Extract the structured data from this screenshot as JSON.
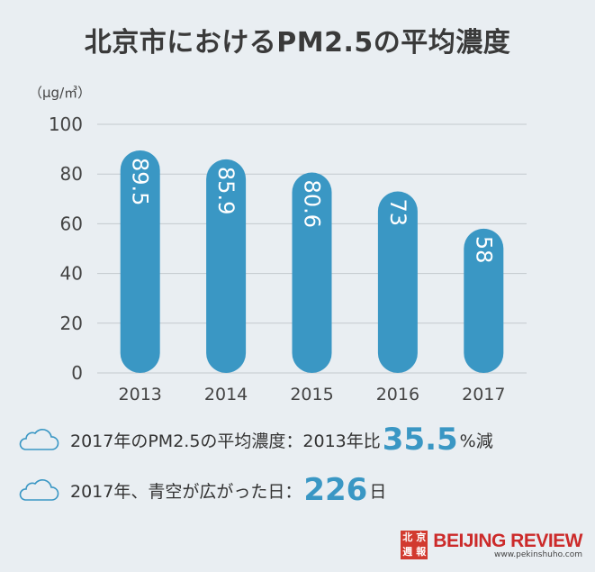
{
  "title": "北京市におけるPM2.5の平均濃度",
  "unit": "（μg/㎥）",
  "chart_data": {
    "type": "bar",
    "categories": [
      "2013",
      "2014",
      "2015",
      "2016",
      "2017"
    ],
    "values": [
      89.5,
      85.9,
      80.6,
      73,
      58
    ],
    "value_labels": [
      "89.5",
      "85.9",
      "80.6",
      "73",
      "58"
    ],
    "ylim": [
      0,
      100
    ],
    "yticks": [
      0,
      20,
      40,
      60,
      80,
      100
    ],
    "grid": true,
    "bar_color": "#3a97c4"
  },
  "stats": [
    {
      "prefix": "2017年のPM2.5の平均濃度：2013年比",
      "value": "35.5",
      "suffix": "%減"
    },
    {
      "prefix": "2017年、青空が広がった日：",
      "value": "226",
      "suffix": "日"
    }
  ],
  "brand": {
    "seal": [
      "北",
      "京",
      "週",
      "報"
    ],
    "name": "BEIJING REVIEW",
    "url": "www.pekinshuho.com",
    "color": "#cc2a2a"
  },
  "colors": {
    "accent": "#3a97c4",
    "background": "#e9eef2"
  }
}
